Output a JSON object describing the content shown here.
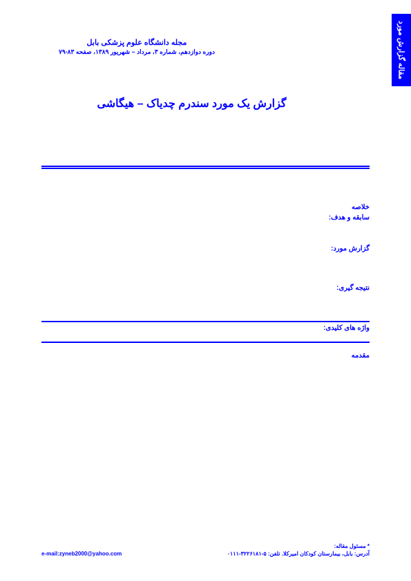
{
  "sidebar": {
    "label": "مقاله گزارش مورد"
  },
  "header": {
    "journal_name": "مجله دانشگاه علوم پزشکی بابل",
    "journal_info": "دوره دوازدهم، شماره ۳، مرداد – شهریور ۱۳۸۹، صفحه ۸۳-۷۹"
  },
  "article": {
    "title": "گزارش یک مورد سندرم چدیاک – هیگاشی"
  },
  "sections": {
    "abstract": "خلاصه",
    "background": "سابقه و هدف:",
    "case_report": "گزارش مورد:",
    "conclusion": "نتیجه گیری:",
    "keywords": "واژه های کلیدی:",
    "introduction": "مقدمه"
  },
  "footer": {
    "author": "* مسئول مقاله:",
    "address": "آدرس: بابل، بیمارستان کودکان امیرکلا. تلفن: ۵-۳۲۲۶۱۸۱-۰۱۱۱",
    "email": "e-mail:zyneb2000@yahoo.com"
  },
  "colors": {
    "primary": "#0000ff",
    "background": "#ffffff",
    "text": "#ffffff"
  }
}
